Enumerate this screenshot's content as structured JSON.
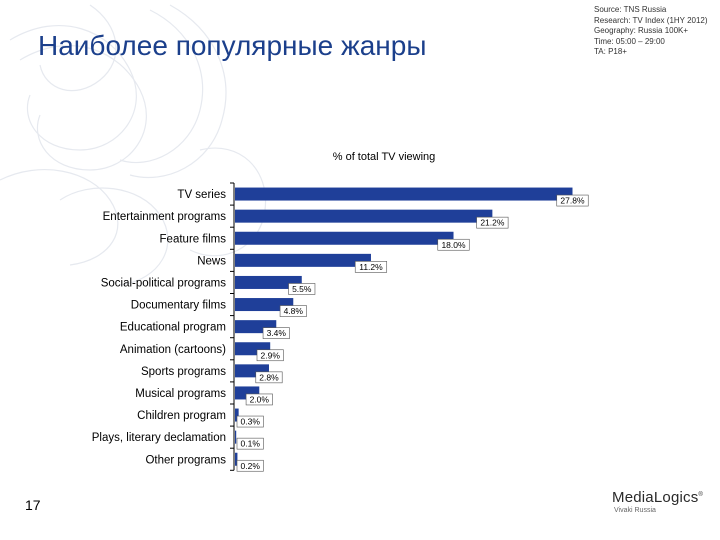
{
  "slide": {
    "title": "Наиболее популярные жанры",
    "source": "Source: TNS Russia\nResearch: TV Index (1HY 2012)\nGeography: Russia 100K+\nTime: 05:00 – 29:00\nTA: P18+",
    "page_number": "17",
    "logo_main": "MediaLogics",
    "logo_tm": "®",
    "logo_sub": "Vivaki Russia"
  },
  "colors": {
    "bar": "#1f3f99",
    "title": "#1b3f8b",
    "axis": "#000000"
  },
  "chart_data": {
    "type": "bar",
    "orientation": "horizontal",
    "title": "% of total TV viewing",
    "xlabel": "",
    "ylabel": "",
    "grid": false,
    "legend": "none",
    "xlim": [
      0,
      30
    ],
    "categories": [
      "TV series",
      "Entertainment programs",
      "Feature films",
      "News",
      "Social-political programs",
      "Documentary films",
      "Educational program",
      "Animation (cartoons)",
      "Sports programs",
      "Musical programs",
      "Children program",
      "Plays, literary declamation",
      "Other programs"
    ],
    "values": [
      27.8,
      21.2,
      18.0,
      11.2,
      5.5,
      4.8,
      3.4,
      2.9,
      2.8,
      2.0,
      0.3,
      0.1,
      0.2
    ],
    "data_labels": [
      "27.8%",
      "21.2%",
      "18.0%",
      "11.2%",
      "5.5%",
      "4.8%",
      "3.4%",
      "2.9%",
      "2.8%",
      "2.0%",
      "0.3%",
      "0.1%",
      "0.2%"
    ]
  }
}
